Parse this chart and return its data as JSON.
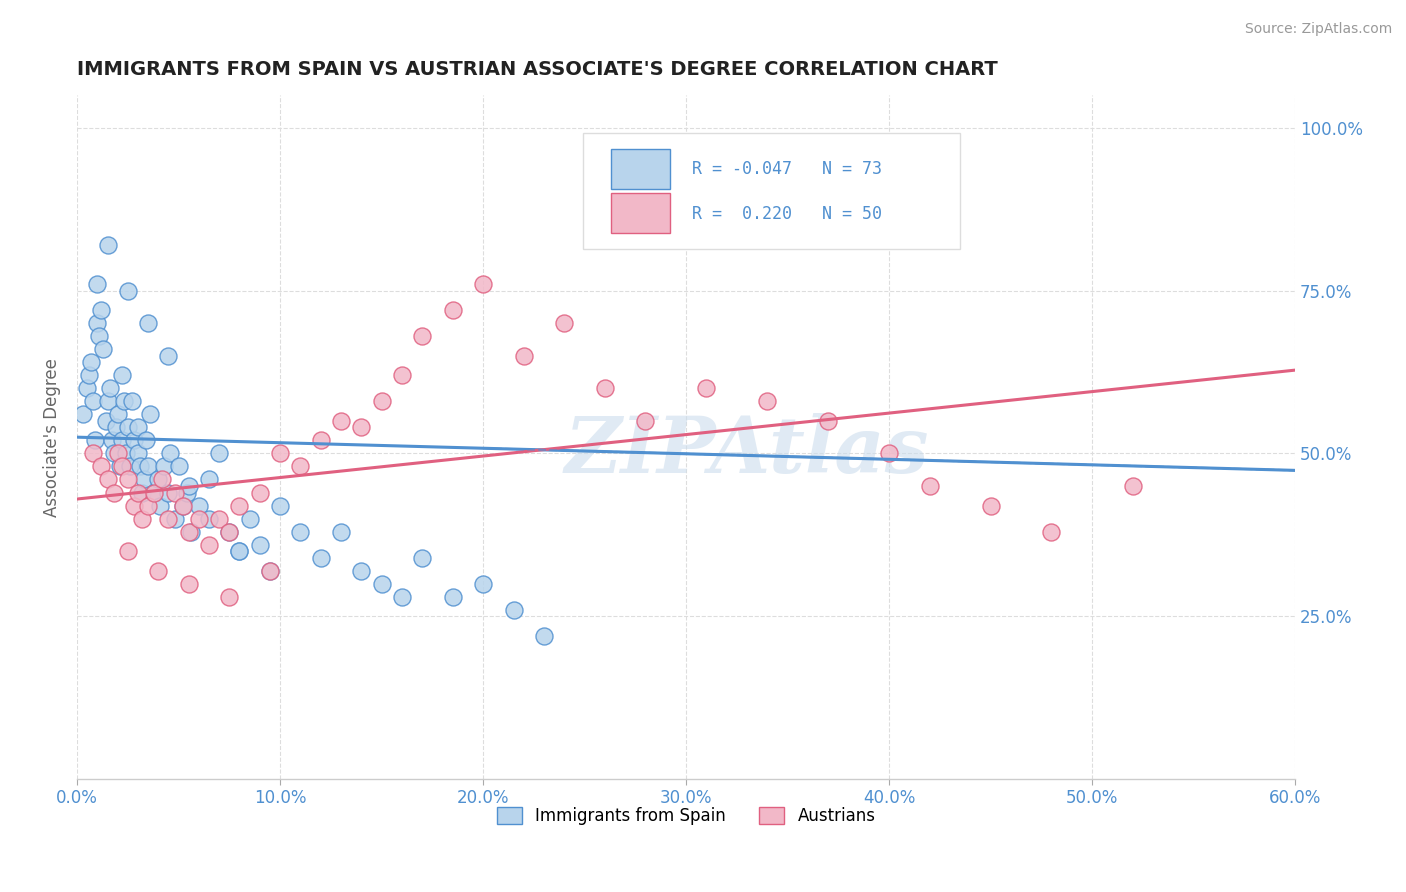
{
  "title": "IMMIGRANTS FROM SPAIN VS AUSTRIAN ASSOCIATE'S DEGREE CORRELATION CHART",
  "source_text": "Source: ZipAtlas.com",
  "ylabel": "Associate's Degree",
  "xmin": 0.0,
  "xmax": 0.6,
  "ymin": 0.0,
  "ymax": 1.05,
  "blue_R": -0.047,
  "blue_N": 73,
  "pink_R": 0.22,
  "pink_N": 50,
  "blue_color": "#b8d4ec",
  "pink_color": "#f2b8c8",
  "blue_line_color": "#5090d0",
  "pink_line_color": "#e06080",
  "watermark": "ZIPAtlas",
  "xtick_labels": [
    "0.0%",
    "10.0%",
    "20.0%",
    "30.0%",
    "40.0%",
    "50.0%",
    "60.0%"
  ],
  "xtick_values": [
    0.0,
    0.1,
    0.2,
    0.3,
    0.4,
    0.5,
    0.6
  ],
  "ytick_labels": [
    "25.0%",
    "50.0%",
    "75.0%",
    "100.0%"
  ],
  "ytick_values": [
    0.25,
    0.5,
    0.75,
    1.0
  ],
  "blue_scatter_x": [
    0.003,
    0.005,
    0.006,
    0.007,
    0.008,
    0.009,
    0.01,
    0.01,
    0.011,
    0.012,
    0.013,
    0.014,
    0.015,
    0.016,
    0.017,
    0.018,
    0.019,
    0.02,
    0.021,
    0.022,
    0.022,
    0.023,
    0.024,
    0.025,
    0.026,
    0.027,
    0.028,
    0.03,
    0.03,
    0.031,
    0.032,
    0.033,
    0.034,
    0.035,
    0.036,
    0.038,
    0.04,
    0.041,
    0.043,
    0.045,
    0.046,
    0.048,
    0.05,
    0.052,
    0.054,
    0.056,
    0.06,
    0.065,
    0.07,
    0.075,
    0.08,
    0.085,
    0.09,
    0.1,
    0.11,
    0.12,
    0.13,
    0.14,
    0.15,
    0.16,
    0.17,
    0.185,
    0.2,
    0.215,
    0.23,
    0.015,
    0.025,
    0.035,
    0.045,
    0.055,
    0.065,
    0.08,
    0.095
  ],
  "blue_scatter_y": [
    0.56,
    0.6,
    0.62,
    0.64,
    0.58,
    0.52,
    0.7,
    0.76,
    0.68,
    0.72,
    0.66,
    0.55,
    0.58,
    0.6,
    0.52,
    0.5,
    0.54,
    0.56,
    0.48,
    0.52,
    0.62,
    0.58,
    0.5,
    0.54,
    0.48,
    0.58,
    0.52,
    0.5,
    0.54,
    0.48,
    0.44,
    0.46,
    0.52,
    0.48,
    0.56,
    0.44,
    0.46,
    0.42,
    0.48,
    0.44,
    0.5,
    0.4,
    0.48,
    0.42,
    0.44,
    0.38,
    0.42,
    0.46,
    0.5,
    0.38,
    0.35,
    0.4,
    0.36,
    0.42,
    0.38,
    0.34,
    0.38,
    0.32,
    0.3,
    0.28,
    0.34,
    0.28,
    0.3,
    0.26,
    0.22,
    0.82,
    0.75,
    0.7,
    0.65,
    0.45,
    0.4,
    0.35,
    0.32
  ],
  "pink_scatter_x": [
    0.008,
    0.012,
    0.015,
    0.018,
    0.02,
    0.022,
    0.025,
    0.028,
    0.03,
    0.032,
    0.035,
    0.038,
    0.042,
    0.045,
    0.048,
    0.052,
    0.055,
    0.06,
    0.065,
    0.07,
    0.075,
    0.08,
    0.09,
    0.1,
    0.11,
    0.12,
    0.13,
    0.14,
    0.15,
    0.16,
    0.17,
    0.185,
    0.2,
    0.22,
    0.24,
    0.26,
    0.28,
    0.31,
    0.34,
    0.37,
    0.4,
    0.42,
    0.45,
    0.48,
    0.52,
    0.025,
    0.04,
    0.055,
    0.075,
    0.095
  ],
  "pink_scatter_y": [
    0.5,
    0.48,
    0.46,
    0.44,
    0.5,
    0.48,
    0.46,
    0.42,
    0.44,
    0.4,
    0.42,
    0.44,
    0.46,
    0.4,
    0.44,
    0.42,
    0.38,
    0.4,
    0.36,
    0.4,
    0.38,
    0.42,
    0.44,
    0.5,
    0.48,
    0.52,
    0.55,
    0.54,
    0.58,
    0.62,
    0.68,
    0.72,
    0.76,
    0.65,
    0.7,
    0.6,
    0.55,
    0.6,
    0.58,
    0.55,
    0.5,
    0.45,
    0.42,
    0.38,
    0.45,
    0.35,
    0.32,
    0.3,
    0.28,
    0.32
  ],
  "legend_blue_label": "Immigrants from Spain",
  "legend_pink_label": "Austrians",
  "background_color": "#ffffff",
  "grid_color": "#dddddd",
  "blue_trend_intercept": 0.525,
  "blue_trend_slope": -0.085,
  "pink_trend_intercept": 0.43,
  "pink_trend_slope": 0.33
}
